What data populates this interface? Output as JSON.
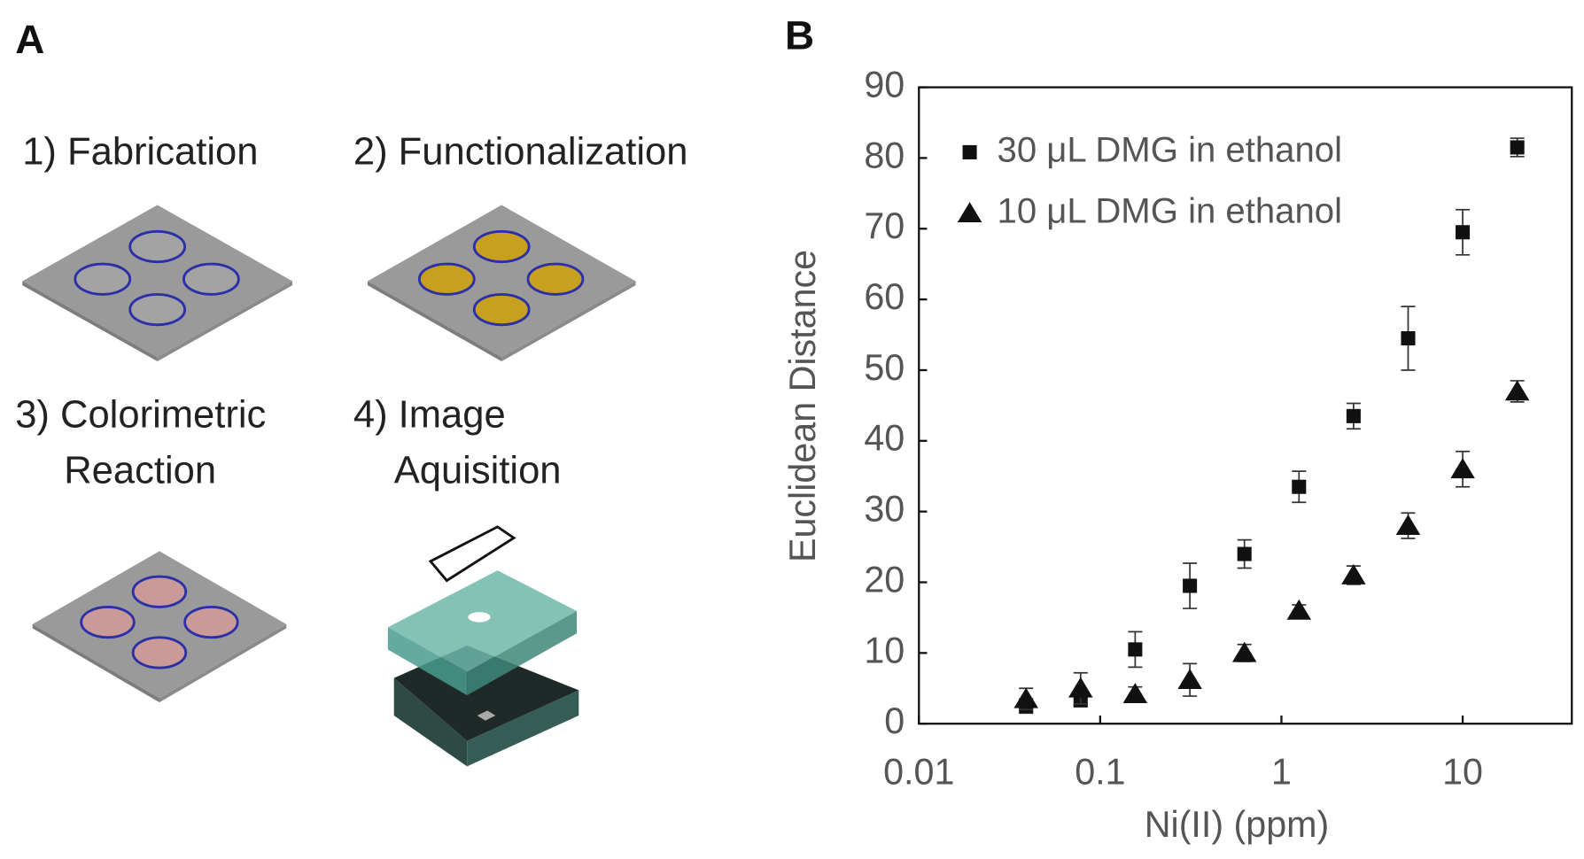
{
  "panel_labels": [
    "A",
    "B"
  ],
  "panel_a": {
    "steps": [
      "1) Fabrication",
      "2) Functionalization",
      "3) Colorimetric",
      "Reaction",
      "4) Image",
      "Aquisition"
    ]
  },
  "chart_data": {
    "type": "scatter",
    "x_label": "Ni(II) (ppm)",
    "y_label": "Euclidean Distance",
    "x": [
      0.039,
      0.078,
      0.156,
      0.3125,
      0.625,
      1.25,
      2.5,
      5,
      10,
      20
    ],
    "series": [
      {
        "name": "30 μL DMG in ethanol",
        "color": "#111111",
        "marker": "square",
        "values": [
          2.5,
          3.3,
          10.5,
          19.5,
          24,
          33.5,
          43.5,
          54.5,
          69.5,
          81.5
        ],
        "errors": [
          1,
          0.8,
          2.5,
          3.2,
          2,
          2.2,
          1.8,
          4.5,
          3.2,
          1.3
        ]
      },
      {
        "name": "10 μL DMG in ethanol",
        "color": "#111111",
        "marker": "triangle",
        "values": [
          3.5,
          5,
          4.2,
          6.2,
          10,
          16,
          21,
          28,
          36,
          47
        ],
        "errors": [
          1.5,
          2.2,
          1,
          2.3,
          1.2,
          0.8,
          1.3,
          1.8,
          2.5,
          1.5
        ]
      }
    ],
    "xlim": [
      0.01,
      40
    ],
    "xticks": [
      0.01,
      0.1,
      1,
      10
    ],
    "xscale": "log",
    "ylim": [
      0,
      90
    ],
    "yticks": [
      0,
      10,
      20,
      30,
      40,
      50,
      60,
      70,
      80,
      90
    ],
    "grid": false,
    "legend": "upper left"
  }
}
